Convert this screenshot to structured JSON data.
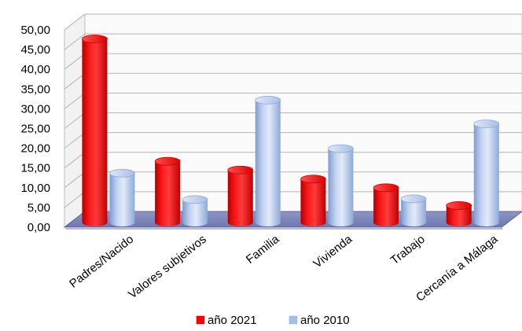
{
  "chart_data": {
    "type": "bar",
    "title": "",
    "xlabel": "",
    "ylabel": "",
    "categories": [
      "Padres/Nacido",
      "Valores subjetivos",
      "Familia",
      "Vivienda",
      "Trabajo",
      "Cercanía a Málaga"
    ],
    "series": [
      {
        "name": "año 2021",
        "values": [
          46.5,
          15.5,
          13.3,
          11.0,
          8.8,
          4.3
        ]
      },
      {
        "name": "año 2010",
        "values": [
          12.5,
          5.8,
          31.0,
          18.7,
          6.0,
          25.0
        ]
      }
    ],
    "ylim": [
      0,
      50
    ],
    "yticks": [
      "0,00",
      "5,00",
      "10,00",
      "15,00",
      "20,00",
      "25,00",
      "30,00",
      "35,00",
      "40,00",
      "45,00",
      "50,00"
    ],
    "grid": true,
    "legend_position": "bottom",
    "colors": {
      "año 2021": "#ff0000",
      "año 2010": "#a6bfe8"
    }
  }
}
